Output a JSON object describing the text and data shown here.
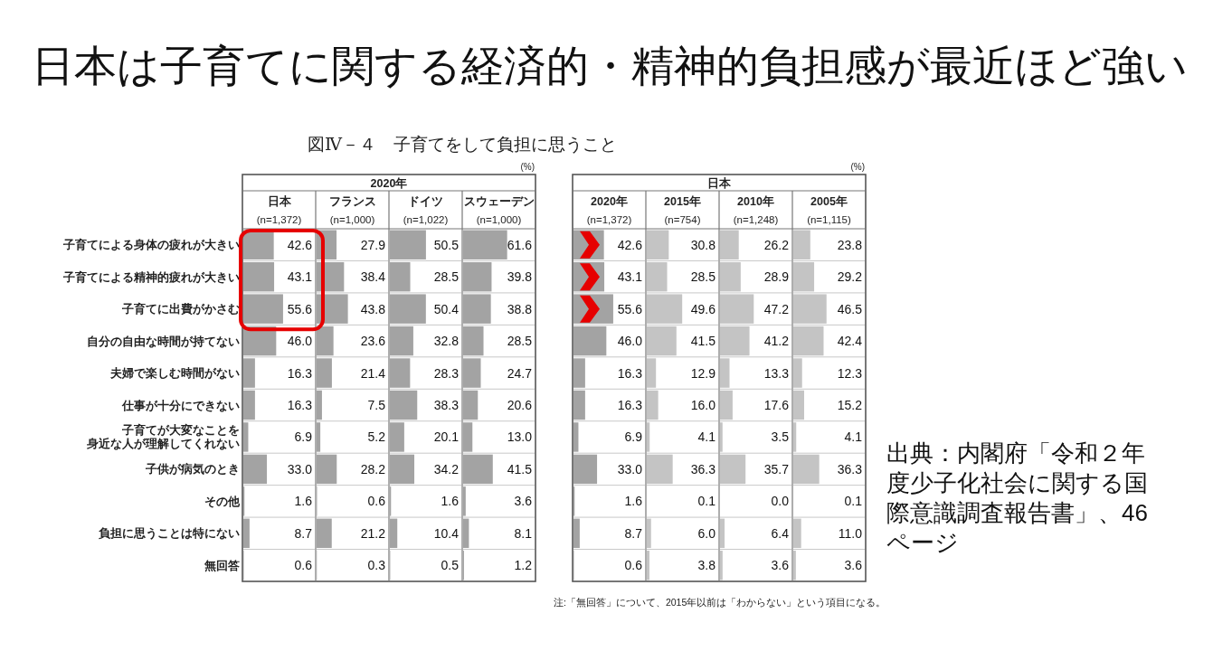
{
  "chart_data": [
    {
      "type": "other",
      "title": "日本は子育てに関する経済的・精神的負担感が最近ほど強い",
      "subtitle": "図Ⅳ－４　子育てをして負担に思うこと",
      "annotations": [
        "注:「無回答」について、2015年以前は「わからない」という項目になる。",
        "出典：内閣府「令和２年度少子化社会に関する国際意識調査報告書」、46ページ"
      ]
    },
    {
      "type": "bar",
      "orientation": "horizontal",
      "title": "日本",
      "subtitle": "(n=1,372)",
      "annotations": [
        "2020年"
      ],
      "categories": [
        "子育てによる身体の疲れが大きい",
        "子育てによる精神的疲れが大きい",
        "子育てに出費がかさむ",
        "自分の自由な時間が持てない",
        "夫婦で楽しむ時間がない",
        "仕事が十分にできない",
        "子育てが大変なことを身近な人が理解してくれない",
        "子供が病気のとき",
        "その他",
        "負担に思うことは特にない",
        "無回答"
      ],
      "values": [
        42.6,
        43.1,
        55.6,
        46.0,
        16.3,
        16.3,
        6.9,
        33.0,
        1.6,
        8.7,
        0.6
      ],
      "value_labels": [
        "42.6",
        "43.1",
        "55.6",
        "46.0",
        "16.3",
        "16.3",
        "6.9",
        "33.0",
        "1.6",
        "8.7",
        "0.6"
      ],
      "color": "#a3a3a3",
      "xlim": [
        0,
        100
      ],
      "tick_labels": "y"
    },
    {
      "type": "bar",
      "orientation": "horizontal",
      "title": "フランス",
      "subtitle": "(n=1,000)",
      "categories": [
        null,
        null,
        null,
        null,
        null,
        null,
        null,
        null,
        null,
        null,
        null
      ],
      "values": [
        27.9,
        38.4,
        43.8,
        23.6,
        21.4,
        7.5,
        5.2,
        28.2,
        0.6,
        21.2,
        0.3
      ],
      "value_labels": [
        "27.9",
        "38.4",
        "43.8",
        "23.6",
        "21.4",
        "7.5",
        "5.2",
        "28.2",
        "0.6",
        "21.2",
        "0.3"
      ],
      "color": "#a3a3a3",
      "xlim": [
        0,
        100
      ]
    },
    {
      "type": "bar",
      "orientation": "horizontal",
      "title": "ドイツ",
      "subtitle": "(n=1,022)",
      "categories": [
        null,
        null,
        null,
        null,
        null,
        null,
        null,
        null,
        null,
        null,
        null
      ],
      "values": [
        50.5,
        28.5,
        50.4,
        32.8,
        28.3,
        38.3,
        20.1,
        34.2,
        1.6,
        10.4,
        0.5
      ],
      "value_labels": [
        "50.5",
        "28.5",
        "50.4",
        "32.8",
        "28.3",
        "38.3",
        "20.1",
        "34.2",
        "1.6",
        "10.4",
        "0.5"
      ],
      "color": "#a3a3a3",
      "xlim": [
        0,
        100
      ]
    },
    {
      "type": "bar",
      "orientation": "horizontal",
      "title": "スウェーデン",
      "subtitle": "(n=1,000)",
      "xlabel": "(%)",
      "categories": [
        null,
        null,
        null,
        null,
        null,
        null,
        null,
        null,
        null,
        null,
        null
      ],
      "values": [
        61.6,
        39.8,
        38.8,
        28.5,
        24.7,
        20.6,
        13.0,
        41.5,
        3.6,
        8.1,
        1.2
      ],
      "value_labels": [
        "61.6",
        "39.8",
        "38.8",
        "28.5",
        "24.7",
        "20.6",
        "13.0",
        "41.5",
        "3.6",
        "8.1",
        "1.2"
      ],
      "color": "#a3a3a3",
      "xlim": [
        0,
        100
      ]
    },
    {
      "type": "bar",
      "orientation": "horizontal",
      "title": "2020年",
      "subtitle": "(n=1,372)",
      "annotations": [
        "日本"
      ],
      "categories": [
        null,
        null,
        null,
        null,
        null,
        null,
        null,
        null,
        null,
        null,
        null
      ],
      "values": [
        42.6,
        43.1,
        55.6,
        46.0,
        16.3,
        16.3,
        6.9,
        33.0,
        1.6,
        8.7,
        0.6
      ],
      "value_labels": [
        "42.6",
        "43.1",
        "55.6",
        "46.0",
        "16.3",
        "16.3",
        "6.9",
        "33.0",
        "1.6",
        "8.7",
        "0.6"
      ],
      "color": "#a3a3a3",
      "xlim": [
        0,
        100
      ]
    },
    {
      "type": "bar",
      "orientation": "horizontal",
      "title": "2015年",
      "subtitle": "(n=754)",
      "categories": [
        null,
        null,
        null,
        null,
        null,
        null,
        null,
        null,
        null,
        null,
        null
      ],
      "values": [
        30.8,
        28.5,
        49.6,
        41.5,
        12.9,
        16.0,
        4.1,
        36.3,
        0.1,
        6.0,
        3.8
      ],
      "value_labels": [
        "30.8",
        "28.5",
        "49.6",
        "41.5",
        "12.9",
        "16.0",
        "4.1",
        "36.3",
        "0.1",
        "6.0",
        "3.8"
      ],
      "color": "#c4c4c4",
      "xlim": [
        0,
        100
      ]
    },
    {
      "type": "bar",
      "orientation": "horizontal",
      "title": "2010年",
      "subtitle": "(n=1,248)",
      "categories": [
        null,
        null,
        null,
        null,
        null,
        null,
        null,
        null,
        null,
        null,
        null
      ],
      "values": [
        26.2,
        28.9,
        47.2,
        41.2,
        13.3,
        17.6,
        3.5,
        35.7,
        0.0,
        6.4,
        3.6
      ],
      "value_labels": [
        "26.2",
        "28.9",
        "47.2",
        "41.2",
        "13.3",
        "17.6",
        "3.5",
        "35.7",
        "0.0",
        "6.4",
        "3.6"
      ],
      "color": "#c4c4c4",
      "xlim": [
        0,
        100
      ]
    },
    {
      "type": "bar",
      "orientation": "horizontal",
      "title": "2005年",
      "subtitle": "(n=1,115)",
      "xlabel": "(%)",
      "categories": [
        null,
        null,
        null,
        null,
        null,
        null,
        null,
        null,
        null,
        null,
        null
      ],
      "values": [
        23.8,
        29.2,
        46.5,
        42.4,
        12.3,
        15.2,
        4.1,
        36.3,
        0.1,
        11.0,
        3.6
      ],
      "value_labels": [
        "23.8",
        "29.2",
        "46.5",
        "42.4",
        "12.3",
        "15.2",
        "4.1",
        "36.3",
        "0.1",
        "11.0",
        "3.6"
      ],
      "color": "#c4c4c4",
      "xlim": [
        0,
        100
      ]
    }
  ]
}
